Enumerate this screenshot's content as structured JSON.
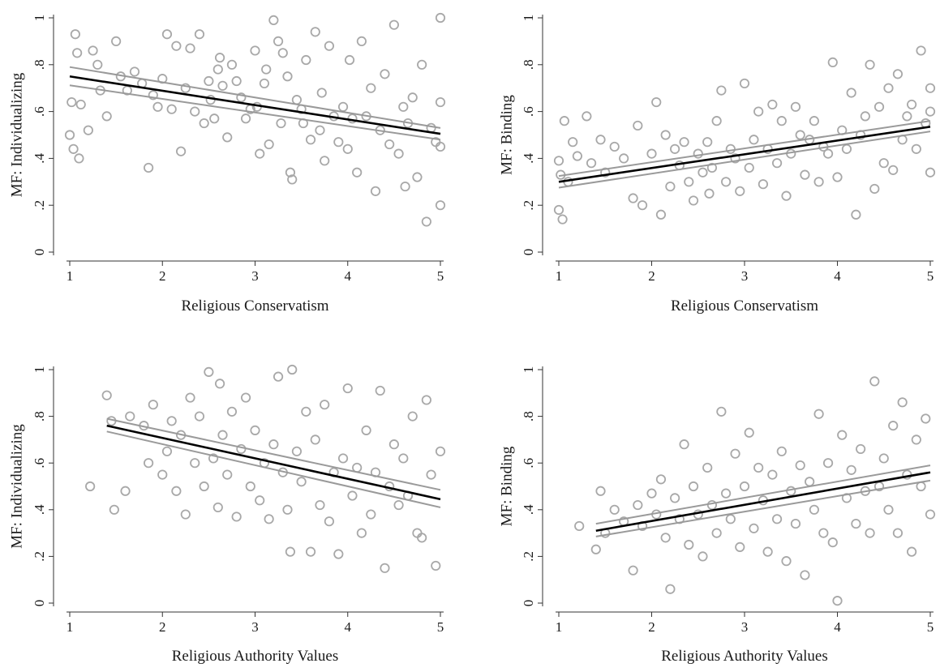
{
  "chart_data": [
    {
      "type": "scatter",
      "xlabel": "Religious Conservatism",
      "ylabel": "MF: Individualizing",
      "xlim": [
        1,
        5
      ],
      "ylim": [
        0,
        1
      ],
      "xticks": [
        "1",
        "2",
        "3",
        "4",
        "5"
      ],
      "yticks": [
        "0",
        ".2",
        ".4",
        ".6",
        ".8",
        "1"
      ],
      "grid": false,
      "fit_line": {
        "x0": 1,
        "y0": 0.75,
        "x1": 5,
        "y1": 0.505
      },
      "ci_band": {
        "lower0": 0.712,
        "upper0": 0.79,
        "lower1": 0.48,
        "upper1": 0.53
      },
      "points": {
        "x": [
          1.0,
          1.02,
          1.04,
          1.06,
          1.08,
          1.1,
          1.12,
          1.2,
          1.25,
          1.3,
          1.33,
          1.4,
          1.5,
          1.55,
          1.62,
          1.7,
          1.78,
          1.85,
          1.9,
          1.95,
          2.0,
          2.05,
          2.1,
          2.15,
          2.2,
          2.25,
          2.3,
          2.35,
          2.4,
          2.45,
          2.5,
          2.52,
          2.56,
          2.6,
          2.62,
          2.65,
          2.7,
          2.75,
          2.8,
          2.85,
          2.9,
          2.95,
          3.0,
          3.02,
          3.05,
          3.1,
          3.12,
          3.15,
          3.2,
          3.25,
          3.28,
          3.3,
          3.35,
          3.38,
          3.4,
          3.45,
          3.5,
          3.52,
          3.55,
          3.6,
          3.65,
          3.7,
          3.72,
          3.75,
          3.8,
          3.85,
          3.9,
          3.95,
          4.0,
          4.02,
          4.05,
          4.1,
          4.15,
          4.2,
          4.25,
          4.3,
          4.35,
          4.4,
          4.45,
          4.5,
          4.55,
          4.6,
          4.62,
          4.65,
          4.7,
          4.75,
          4.8,
          4.85,
          4.9,
          4.95,
          5.0,
          5.0,
          5.0,
          5.0
        ],
        "y": [
          0.5,
          0.64,
          0.44,
          0.93,
          0.85,
          0.4,
          0.63,
          0.52,
          0.86,
          0.8,
          0.69,
          0.58,
          0.9,
          0.75,
          0.69,
          0.77,
          0.72,
          0.36,
          0.67,
          0.62,
          0.74,
          0.93,
          0.61,
          0.88,
          0.43,
          0.7,
          0.87,
          0.6,
          0.93,
          0.55,
          0.73,
          0.65,
          0.57,
          0.78,
          0.83,
          0.71,
          0.49,
          0.8,
          0.73,
          0.66,
          0.57,
          0.61,
          0.86,
          0.62,
          0.42,
          0.72,
          0.78,
          0.46,
          0.99,
          0.9,
          0.55,
          0.85,
          0.75,
          0.34,
          0.31,
          0.65,
          0.61,
          0.55,
          0.82,
          0.48,
          0.94,
          0.52,
          0.68,
          0.39,
          0.88,
          0.58,
          0.47,
          0.62,
          0.44,
          0.82,
          0.57,
          0.34,
          0.9,
          0.58,
          0.7,
          0.26,
          0.52,
          0.76,
          0.46,
          0.97,
          0.42,
          0.62,
          0.28,
          0.55,
          0.66,
          0.32,
          0.8,
          0.13,
          0.53,
          0.47,
          1.0,
          0.64,
          0.2,
          0.45
        ]
      }
    },
    {
      "type": "scatter",
      "xlabel": "Religious Conservatism",
      "ylabel": "MF: Binding",
      "xlim": [
        1,
        5
      ],
      "ylim": [
        0,
        1
      ],
      "xticks": [
        "1",
        "2",
        "3",
        "4",
        "5"
      ],
      "yticks": [
        "0",
        ".2",
        ".4",
        ".6",
        ".8",
        "1"
      ],
      "grid": false,
      "fit_line": {
        "x0": 1,
        "y0": 0.3,
        "x1": 5,
        "y1": 0.535
      },
      "ci_band": {
        "lower0": 0.275,
        "upper0": 0.325,
        "lower1": 0.515,
        "upper1": 0.56
      },
      "points": {
        "x": [
          1.0,
          1.0,
          1.02,
          1.04,
          1.06,
          1.1,
          1.15,
          1.2,
          1.3,
          1.35,
          1.45,
          1.5,
          1.6,
          1.7,
          1.8,
          1.85,
          1.9,
          2.0,
          2.05,
          2.1,
          2.15,
          2.2,
          2.25,
          2.3,
          2.35,
          2.4,
          2.45,
          2.5,
          2.55,
          2.6,
          2.62,
          2.65,
          2.7,
          2.75,
          2.8,
          2.85,
          2.9,
          2.95,
          3.0,
          3.05,
          3.1,
          3.15,
          3.2,
          3.25,
          3.3,
          3.35,
          3.4,
          3.45,
          3.5,
          3.55,
          3.6,
          3.65,
          3.7,
          3.75,
          3.8,
          3.85,
          3.9,
          3.95,
          4.0,
          4.05,
          4.1,
          4.15,
          4.2,
          4.25,
          4.3,
          4.35,
          4.4,
          4.45,
          4.5,
          4.55,
          4.6,
          4.65,
          4.7,
          4.75,
          4.8,
          4.85,
          4.9,
          4.95,
          5.0,
          5.0,
          5.0
        ],
        "y": [
          0.39,
          0.18,
          0.33,
          0.14,
          0.56,
          0.3,
          0.47,
          0.41,
          0.58,
          0.38,
          0.48,
          0.34,
          0.45,
          0.4,
          0.23,
          0.54,
          0.2,
          0.42,
          0.64,
          0.16,
          0.5,
          0.28,
          0.44,
          0.37,
          0.47,
          0.3,
          0.22,
          0.42,
          0.34,
          0.47,
          0.25,
          0.36,
          0.56,
          0.69,
          0.3,
          0.44,
          0.4,
          0.26,
          0.72,
          0.36,
          0.48,
          0.6,
          0.29,
          0.44,
          0.63,
          0.38,
          0.56,
          0.24,
          0.42,
          0.62,
          0.5,
          0.33,
          0.48,
          0.56,
          0.3,
          0.45,
          0.42,
          0.81,
          0.32,
          0.52,
          0.44,
          0.68,
          0.16,
          0.5,
          0.58,
          0.8,
          0.27,
          0.62,
          0.38,
          0.7,
          0.35,
          0.76,
          0.48,
          0.58,
          0.63,
          0.44,
          0.86,
          0.55,
          0.7,
          0.34,
          0.6
        ]
      }
    },
    {
      "type": "scatter",
      "xlabel": "Religious Authority Values",
      "ylabel": "MF: Individualizing",
      "xlim": [
        1,
        5
      ],
      "ylim": [
        0,
        1
      ],
      "xticks": [
        "1",
        "2",
        "3",
        "4",
        "5"
      ],
      "yticks": [
        "0",
        ".2",
        ".4",
        ".6",
        ".8",
        "1"
      ],
      "grid": false,
      "fit_line": {
        "x0": 1.4,
        "y0": 0.76,
        "x1": 5,
        "y1": 0.445
      },
      "ci_band": {
        "lower0": 0.735,
        "upper0": 0.79,
        "lower1": 0.41,
        "upper1": 0.485
      },
      "points": {
        "x": [
          1.22,
          1.4,
          1.45,
          1.48,
          1.6,
          1.65,
          1.8,
          1.85,
          1.9,
          2.0,
          2.05,
          2.1,
          2.15,
          2.2,
          2.25,
          2.3,
          2.35,
          2.4,
          2.45,
          2.5,
          2.55,
          2.6,
          2.62,
          2.65,
          2.7,
          2.75,
          2.8,
          2.85,
          2.9,
          2.95,
          3.0,
          3.05,
          3.1,
          3.15,
          3.2,
          3.25,
          3.3,
          3.35,
          3.38,
          3.4,
          3.45,
          3.5,
          3.55,
          3.6,
          3.65,
          3.7,
          3.75,
          3.8,
          3.85,
          3.9,
          3.95,
          4.0,
          4.05,
          4.1,
          4.15,
          4.2,
          4.25,
          4.3,
          4.35,
          4.4,
          4.45,
          4.5,
          4.55,
          4.6,
          4.65,
          4.7,
          4.75,
          4.8,
          4.85,
          4.9,
          4.95,
          5.0
        ],
        "y": [
          0.5,
          0.89,
          0.78,
          0.4,
          0.48,
          0.8,
          0.76,
          0.6,
          0.85,
          0.55,
          0.65,
          0.78,
          0.48,
          0.72,
          0.38,
          0.88,
          0.6,
          0.8,
          0.5,
          0.99,
          0.62,
          0.41,
          0.94,
          0.72,
          0.55,
          0.82,
          0.37,
          0.66,
          0.88,
          0.5,
          0.74,
          0.44,
          0.6,
          0.36,
          0.68,
          0.97,
          0.56,
          0.4,
          0.22,
          1.0,
          0.65,
          0.52,
          0.82,
          0.22,
          0.7,
          0.42,
          0.85,
          0.35,
          0.56,
          0.21,
          0.62,
          0.92,
          0.46,
          0.58,
          0.3,
          0.74,
          0.38,
          0.56,
          0.91,
          0.15,
          0.5,
          0.68,
          0.42,
          0.62,
          0.46,
          0.8,
          0.3,
          0.28,
          0.87,
          0.55,
          0.16,
          0.65
        ]
      }
    },
    {
      "type": "scatter",
      "xlabel": "Religious Authority Values",
      "ylabel": "MF: Binding",
      "xlim": [
        1,
        5
      ],
      "ylim": [
        0,
        1
      ],
      "xticks": [
        "1",
        "2",
        "3",
        "4",
        "5"
      ],
      "yticks": [
        "0",
        ".2",
        ".4",
        ".6",
        ".8",
        "1"
      ],
      "grid": false,
      "fit_line": {
        "x0": 1.4,
        "y0": 0.31,
        "x1": 5,
        "y1": 0.56
      },
      "ci_band": {
        "lower0": 0.285,
        "upper0": 0.34,
        "lower1": 0.525,
        "upper1": 0.59
      },
      "points": {
        "x": [
          1.22,
          1.4,
          1.45,
          1.5,
          1.6,
          1.7,
          1.8,
          1.85,
          1.9,
          2.0,
          2.05,
          2.1,
          2.15,
          2.2,
          2.25,
          2.3,
          2.35,
          2.4,
          2.45,
          2.5,
          2.55,
          2.6,
          2.65,
          2.7,
          2.75,
          2.8,
          2.85,
          2.9,
          2.95,
          3.0,
          3.05,
          3.1,
          3.15,
          3.2,
          3.25,
          3.3,
          3.35,
          3.4,
          3.45,
          3.5,
          3.55,
          3.6,
          3.65,
          3.7,
          3.75,
          3.8,
          3.85,
          3.9,
          3.95,
          4.0,
          4.05,
          4.1,
          4.15,
          4.2,
          4.25,
          4.3,
          4.35,
          4.4,
          4.45,
          4.5,
          4.55,
          4.6,
          4.65,
          4.7,
          4.75,
          4.8,
          4.85,
          4.9,
          4.95,
          5.0
        ],
        "y": [
          0.33,
          0.23,
          0.48,
          0.3,
          0.4,
          0.35,
          0.14,
          0.42,
          0.33,
          0.47,
          0.38,
          0.53,
          0.28,
          0.06,
          0.45,
          0.36,
          0.68,
          0.25,
          0.5,
          0.38,
          0.2,
          0.58,
          0.42,
          0.3,
          0.82,
          0.47,
          0.36,
          0.64,
          0.24,
          0.5,
          0.73,
          0.32,
          0.58,
          0.44,
          0.22,
          0.55,
          0.36,
          0.65,
          0.18,
          0.48,
          0.34,
          0.59,
          0.12,
          0.52,
          0.4,
          0.81,
          0.3,
          0.6,
          0.26,
          0.01,
          0.72,
          0.45,
          0.57,
          0.34,
          0.66,
          0.48,
          0.3,
          0.95,
          0.5,
          0.62,
          0.4,
          0.76,
          0.3,
          0.86,
          0.55,
          0.22,
          0.7,
          0.5,
          0.79,
          0.38
        ]
      }
    }
  ]
}
